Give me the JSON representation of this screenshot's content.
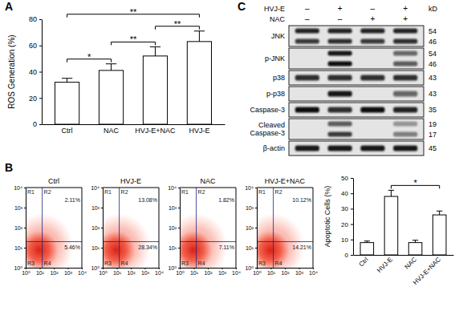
{
  "chart_data": [
    {
      "type": "bar",
      "panel_label": "A",
      "y_label": "ROS Generation (%)",
      "categories": [
        "Ctrl",
        "NAC",
        "HVJ-E+NAC",
        "HVJ-E"
      ],
      "values": [
        32,
        41,
        52,
        63
      ],
      "errors": [
        3,
        5,
        7,
        8
      ],
      "color": "#ffffff",
      "ylim": [
        0,
        80
      ],
      "yticks": [
        0,
        20,
        40,
        60,
        80
      ],
      "annotations": [
        {
          "from": "Ctrl",
          "to": "NAC",
          "text": "*"
        },
        {
          "from": "NAC",
          "to": "HVJ-E+NAC",
          "text": "**"
        },
        {
          "from": "HVJ-E+NAC",
          "to": "HVJ-E",
          "text": "**"
        },
        {
          "from": "Ctrl",
          "to": "HVJ-E",
          "text": "**"
        }
      ]
    },
    {
      "type": "quadrant",
      "panel_label": "B",
      "title": "Ctrl",
      "log": true,
      "xlim": [
        1,
        10000
      ],
      "ylim": [
        1,
        10000
      ],
      "xticks": [
        {
          "value": 1,
          "label": "10⁰"
        },
        {
          "value": 10,
          "label": "10¹"
        },
        {
          "value": 100,
          "label": "10²"
        },
        {
          "value": 1000,
          "label": "10³"
        },
        {
          "value": 10000,
          "label": "10⁴"
        }
      ],
      "yticks": [
        {
          "value": 1,
          "label": "10⁰"
        },
        {
          "value": 10,
          "label": "10¹"
        },
        {
          "value": 100,
          "label": "10²"
        },
        {
          "value": 1000,
          "label": "10³"
        },
        {
          "value": 10000,
          "label": "10⁴"
        }
      ],
      "gate": [
        15,
        20
      ],
      "quadrant_names": [
        "R1",
        "R2",
        "R3",
        "R4"
      ],
      "values": [
        2.11,
        5.46
      ],
      "value_labels": [
        "2.11%",
        "5.46%"
      ],
      "value_quadrants": [
        "R2",
        "R4"
      ]
    },
    {
      "type": "quadrant",
      "title": "HVJ-E",
      "log": true,
      "xlim": [
        1,
        10000
      ],
      "ylim": [
        1,
        10000
      ],
      "xticks": [
        {
          "value": 1,
          "label": "10⁰"
        },
        {
          "value": 10,
          "label": "10¹"
        },
        {
          "value": 100,
          "label": "10²"
        },
        {
          "value": 1000,
          "label": "10³"
        },
        {
          "value": 10000,
          "label": "10⁴"
        }
      ],
      "yticks": [
        {
          "value": 1,
          "label": "10⁰"
        },
        {
          "value": 10,
          "label": "10¹"
        },
        {
          "value": 100,
          "label": "10²"
        },
        {
          "value": 1000,
          "label": "10³"
        },
        {
          "value": 10000,
          "label": "10⁴"
        }
      ],
      "gate": [
        15,
        20
      ],
      "quadrant_names": [
        "R1",
        "R2",
        "R3",
        "R4"
      ],
      "values": [
        13.08,
        28.34
      ],
      "value_labels": [
        "13.08%",
        "28.34%"
      ],
      "value_quadrants": [
        "R2",
        "R4"
      ]
    },
    {
      "type": "quadrant",
      "title": "NAC",
      "log": true,
      "xlim": [
        1,
        10000
      ],
      "ylim": [
        1,
        10000
      ],
      "xticks": [
        {
          "value": 1,
          "label": "10⁰"
        },
        {
          "value": 10,
          "label": "10¹"
        },
        {
          "value": 100,
          "label": "10²"
        },
        {
          "value": 1000,
          "label": "10³"
        },
        {
          "value": 10000,
          "label": "10⁴"
        }
      ],
      "yticks": [
        {
          "value": 1,
          "label": "10⁰"
        },
        {
          "value": 10,
          "label": "10¹"
        },
        {
          "value": 100,
          "label": "10²"
        },
        {
          "value": 1000,
          "label": "10³"
        },
        {
          "value": 10000,
          "label": "10⁴"
        }
      ],
      "gate": [
        15,
        20
      ],
      "quadrant_names": [
        "R1",
        "R2",
        "R3",
        "R4"
      ],
      "values": [
        1.82,
        7.11
      ],
      "value_labels": [
        "1.82%",
        "7.11%"
      ],
      "value_quadrants": [
        "R2",
        "R4"
      ]
    },
    {
      "type": "quadrant",
      "title": "HVJ-E+NAC",
      "log": true,
      "xlim": [
        1,
        10000
      ],
      "ylim": [
        1,
        10000
      ],
      "xticks": [
        {
          "value": 1,
          "label": "10⁰"
        },
        {
          "value": 10,
          "label": "10¹"
        },
        {
          "value": 100,
          "label": "10²"
        },
        {
          "value": 1000,
          "label": "10³"
        },
        {
          "value": 10000,
          "label": "10⁴"
        }
      ],
      "yticks": [
        {
          "value": 1,
          "label": "10⁰"
        },
        {
          "value": 10,
          "label": "10¹"
        },
        {
          "value": 100,
          "label": "10²"
        },
        {
          "value": 1000,
          "label": "10³"
        },
        {
          "value": 10000,
          "label": "10⁴"
        }
      ],
      "gate": [
        15,
        20
      ],
      "quadrant_names": [
        "R1",
        "R2",
        "R3",
        "R4"
      ],
      "values": [
        10.12,
        14.21
      ],
      "value_labels": [
        "10.12%",
        "14.21%"
      ],
      "value_quadrants": [
        "R2",
        "R4"
      ]
    },
    {
      "type": "bar",
      "y_label": "Apoptotic Cells (%)",
      "categories": [
        "Ctrl",
        "HVJ-E",
        "NAC",
        "HVJ-E+NAC"
      ],
      "values": [
        8,
        38,
        8,
        26
      ],
      "errors": [
        1,
        4,
        1.5,
        2.5
      ],
      "color": "#ffffff",
      "ylim": [
        0,
        50
      ],
      "yticks": [
        0,
        10,
        20,
        30,
        40,
        50
      ],
      "annotations": [
        {
          "from": "HVJ-E",
          "to": "HVJ-E+NAC",
          "text": "*"
        }
      ]
    },
    {
      "type": "blot",
      "panel_label": "C",
      "unit_label": "kD",
      "treatments": [
        {
          "name": "HVJ-E",
          "signs": [
            "–",
            "+",
            "–",
            "+"
          ]
        },
        {
          "name": "NAC",
          "signs": [
            "–",
            "–",
            "+",
            "+"
          ]
        }
      ],
      "rows": [
        {
          "label": "JNK",
          "markers": [
            54,
            46
          ],
          "bands": [
            [
              0.85,
              0.85,
              0.85,
              0.85
            ],
            [
              0.75,
              0.8,
              0.75,
              0.8
            ]
          ]
        },
        {
          "label": "p-JNK",
          "markers": [
            54,
            46
          ],
          "bands": [
            [
              0,
              0.9,
              0,
              0.55
            ],
            [
              0,
              0.95,
              0,
              0.6
            ]
          ]
        },
        {
          "label": "p38",
          "markers": [
            43
          ],
          "bands": [
            [
              0.8,
              0.8,
              0.8,
              0.8
            ]
          ]
        },
        {
          "label": "p-p38",
          "markers": [
            43
          ],
          "bands": [
            [
              0,
              0.9,
              0,
              0.55
            ]
          ]
        },
        {
          "label": "Caspase-3",
          "markers": [
            35
          ],
          "bands": [
            [
              0.95,
              0.8,
              0.95,
              0.85
            ]
          ]
        },
        {
          "label": "Cleaved Caspase-3",
          "markers": [
            19,
            17
          ],
          "bands": [
            [
              0,
              0.6,
              0,
              0.35
            ],
            [
              0,
              0.75,
              0,
              0.45
            ]
          ]
        },
        {
          "label": "β-actin",
          "markers": [
            45
          ],
          "bands": [
            [
              0.9,
              0.9,
              0.9,
              0.9
            ]
          ]
        }
      ]
    }
  ]
}
